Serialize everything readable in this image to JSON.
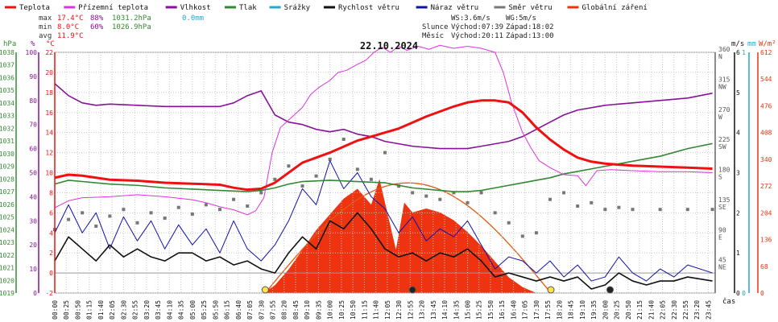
{
  "title": "22.10.2024",
  "legend": [
    {
      "label": "Teplota",
      "color": "#ee1111"
    },
    {
      "label": "Přízemní teplota",
      "color": "#dd33dd"
    },
    {
      "label": "Vlhkost",
      "color": "#881199"
    },
    {
      "label": "Tlak",
      "color": "#338833"
    },
    {
      "label": "Srážky",
      "color": "#22aacc"
    },
    {
      "label": "Rychlost větru",
      "color": "#111111"
    },
    {
      "label": "Náraz větru",
      "color": "#1111aa"
    },
    {
      "label": "Směr větru",
      "color": "#777777"
    },
    {
      "label": "Globální záření",
      "color": "#ee3311"
    }
  ],
  "stats": {
    "max_label": "max",
    "max_temp": "17.4°C",
    "max_hum": "88%",
    "max_press": "1031.2hPa",
    "max_rain": "0.0mm",
    "min_label": "min",
    "min_temp": "8.0°C",
    "min_hum": "60%",
    "min_press": "1026.9hPa",
    "avg_label": "avg",
    "avg_temp": "11.9°C"
  },
  "info": {
    "ws": "WS:3.6m/s",
    "wg": "WG:5m/s",
    "sun_label": "Slunce",
    "sun_rise": "Východ:07:39",
    "sun_set": "Západ:18:02",
    "moon_label": "Měsíc",
    "moon_rise": "Východ:20:11",
    "moon_set": "Západ:13:00"
  },
  "axes": {
    "hpa_unit": "hPa",
    "pct_unit": "%",
    "temp_unit": "°C",
    "ms_unit": "m/s",
    "mm_unit": "mm",
    "wm2_unit": "W/m²",
    "time_unit": "čas",
    "hpa_ticks": [
      1019,
      1020,
      1021,
      1022,
      1023,
      1024,
      1025,
      1026,
      1027,
      1028,
      1029,
      1030,
      1031,
      1032,
      1033,
      1034,
      1035,
      1036,
      1037,
      1038
    ],
    "pct_ticks": [
      0,
      10,
      20,
      30,
      40,
      50,
      60,
      70,
      80,
      90,
      100
    ],
    "temp_ticks": [
      -2,
      0,
      2,
      4,
      6,
      8,
      10,
      12,
      14,
      16,
      18,
      20,
      22
    ],
    "ms_ticks": [
      0,
      1,
      2,
      3,
      4,
      5,
      6
    ],
    "dir_ticks": [
      {
        "deg": "45",
        "name": "NE",
        "v": 45
      },
      {
        "deg": "90",
        "name": "E",
        "v": 90
      },
      {
        "deg": "135",
        "name": "SE",
        "v": 135
      },
      {
        "deg": "180",
        "name": "S",
        "v": 180
      },
      {
        "deg": "225",
        "name": "SW",
        "v": 225
      },
      {
        "deg": "270",
        "name": "W",
        "v": 270
      },
      {
        "deg": "315",
        "name": "NW",
        "v": 315
      },
      {
        "deg": "360",
        "name": "N",
        "v": 360
      }
    ],
    "mm_ticks": [
      0,
      1
    ],
    "wm2_ticks": [
      0,
      68,
      136,
      204,
      272,
      340,
      408,
      476,
      544,
      612
    ],
    "time_ticks": [
      "00:00",
      "00:25",
      "00:50",
      "01:15",
      "01:40",
      "02:05",
      "02:30",
      "02:55",
      "03:20",
      "03:45",
      "04:10",
      "04:35",
      "05:00",
      "05:25",
      "05:50",
      "06:15",
      "06:40",
      "07:05",
      "07:30",
      "07:55",
      "08:20",
      "08:45",
      "09:10",
      "09:35",
      "10:00",
      "10:25",
      "10:50",
      "11:15",
      "11:40",
      "12:05",
      "12:30",
      "12:55",
      "13:20",
      "13:45",
      "14:10",
      "14:35",
      "15:00",
      "15:25",
      "15:50",
      "16:15",
      "16:40",
      "17:05",
      "17:30",
      "17:55",
      "18:20",
      "18:45",
      "19:10",
      "19:35",
      "20:00",
      "20:25",
      "20:50",
      "21:15",
      "21:40",
      "22:05",
      "22:30",
      "22:55",
      "23:20",
      "23:45"
    ]
  },
  "colors": {
    "temp": "#ee1111",
    "ground": "#dd33dd",
    "hum": "#881199",
    "press": "#338833",
    "speed": "#111111",
    "gust": "#1111aa",
    "dir": "#777777",
    "solar": "#ee3311",
    "sunline": "#e05a10",
    "grid": "#c8c8c8"
  },
  "chart_data": {
    "type": "line",
    "title": "22.10.2024",
    "x_unit": "hours",
    "temperature": [
      [
        0,
        9.5
      ],
      [
        0.5,
        9.8
      ],
      [
        1,
        9.7
      ],
      [
        1.5,
        9.5
      ],
      [
        2,
        9.3
      ],
      [
        3,
        9.2
      ],
      [
        4,
        9.0
      ],
      [
        5,
        8.9
      ],
      [
        6,
        8.8
      ],
      [
        6.5,
        8.5
      ],
      [
        7,
        8.3
      ],
      [
        7.5,
        8.4
      ],
      [
        8,
        9.0
      ],
      [
        8.5,
        10.0
      ],
      [
        9,
        11.0
      ],
      [
        9.5,
        11.5
      ],
      [
        10,
        12.0
      ],
      [
        10.5,
        12.6
      ],
      [
        11,
        13.2
      ],
      [
        11.5,
        13.6
      ],
      [
        12,
        14.0
      ],
      [
        12.5,
        14.4
      ],
      [
        13,
        15.0
      ],
      [
        13.5,
        15.6
      ],
      [
        14,
        16.1
      ],
      [
        14.5,
        16.6
      ],
      [
        15,
        17.0
      ],
      [
        15.5,
        17.2
      ],
      [
        16,
        17.2
      ],
      [
        16.5,
        17.0
      ],
      [
        17,
        16.0
      ],
      [
        17.5,
        14.5
      ],
      [
        18,
        13.3
      ],
      [
        18.5,
        12.3
      ],
      [
        19,
        11.5
      ],
      [
        19.5,
        11.1
      ],
      [
        20,
        10.9
      ],
      [
        21,
        10.7
      ],
      [
        22,
        10.6
      ],
      [
        23,
        10.5
      ],
      [
        23.9,
        10.4
      ]
    ],
    "ground_temperature": [
      [
        0,
        6.5
      ],
      [
        0.5,
        7.2
      ],
      [
        1,
        7.5
      ],
      [
        2,
        7.6
      ],
      [
        3,
        7.8
      ],
      [
        4,
        7.6
      ],
      [
        5,
        7.3
      ],
      [
        5.5,
        7.0
      ],
      [
        6,
        6.6
      ],
      [
        6.5,
        6.3
      ],
      [
        7,
        5.8
      ],
      [
        7.3,
        6.2
      ],
      [
        7.6,
        7.5
      ],
      [
        7.9,
        12.0
      ],
      [
        8.2,
        14.5
      ],
      [
        8.6,
        15.5
      ],
      [
        9,
        16.5
      ],
      [
        9.3,
        17.8
      ],
      [
        9.6,
        18.5
      ],
      [
        10,
        19.2
      ],
      [
        10.3,
        20.0
      ],
      [
        10.6,
        20.2
      ],
      [
        11,
        20.8
      ],
      [
        11.3,
        21.2
      ],
      [
        11.6,
        22.0
      ],
      [
        11.9,
        22.5
      ],
      [
        12.2,
        22.0
      ],
      [
        12.5,
        22.6
      ],
      [
        12.8,
        22.2
      ],
      [
        13.2,
        22.6
      ],
      [
        13.6,
        22.3
      ],
      [
        14,
        22.7
      ],
      [
        14.5,
        22.4
      ],
      [
        15,
        22.6
      ],
      [
        15.5,
        22.4
      ],
      [
        16,
        22.0
      ],
      [
        16.3,
        20.0
      ],
      [
        16.6,
        17.0
      ],
      [
        17,
        14.0
      ],
      [
        17.3,
        12.5
      ],
      [
        17.6,
        11.2
      ],
      [
        18,
        10.5
      ],
      [
        18.5,
        9.8
      ],
      [
        19,
        9.7
      ],
      [
        19.3,
        8.7
      ],
      [
        19.7,
        10.2
      ],
      [
        20.2,
        10.3
      ],
      [
        21,
        10.2
      ],
      [
        22,
        10.1
      ],
      [
        23,
        10.1
      ],
      [
        23.9,
        10.0
      ]
    ],
    "humidity": [
      [
        0,
        87
      ],
      [
        0.5,
        82
      ],
      [
        1,
        79
      ],
      [
        1.5,
        78
      ],
      [
        2,
        78.5
      ],
      [
        3,
        78
      ],
      [
        4,
        77.5
      ],
      [
        5,
        77.5
      ],
      [
        6,
        77.5
      ],
      [
        6.5,
        79
      ],
      [
        7,
        82
      ],
      [
        7.5,
        84
      ],
      [
        8,
        74
      ],
      [
        8.5,
        71
      ],
      [
        9,
        70
      ],
      [
        9.5,
        68
      ],
      [
        10,
        67
      ],
      [
        10.5,
        68
      ],
      [
        11,
        66
      ],
      [
        11.5,
        65
      ],
      [
        12,
        63
      ],
      [
        12.5,
        62
      ],
      [
        13,
        61
      ],
      [
        14,
        60
      ],
      [
        15,
        60
      ],
      [
        15.5,
        61
      ],
      [
        16,
        62
      ],
      [
        16.5,
        63
      ],
      [
        17,
        65
      ],
      [
        17.5,
        68
      ],
      [
        18,
        71
      ],
      [
        18.5,
        74
      ],
      [
        19,
        76
      ],
      [
        20,
        78
      ],
      [
        21,
        79
      ],
      [
        22,
        80
      ],
      [
        23,
        81
      ],
      [
        23.9,
        83
      ]
    ],
    "pressure": [
      [
        0,
        1027.6
      ],
      [
        0.5,
        1027.9
      ],
      [
        1,
        1027.8
      ],
      [
        2,
        1027.6
      ],
      [
        3,
        1027.5
      ],
      [
        4,
        1027.3
      ],
      [
        5,
        1027.2
      ],
      [
        6,
        1027.1
      ],
      [
        7,
        1027.0
      ],
      [
        7.5,
        1027.1
      ],
      [
        8,
        1027.3
      ],
      [
        8.5,
        1027.6
      ],
      [
        9,
        1027.8
      ],
      [
        10,
        1027.9
      ],
      [
        11,
        1027.8
      ],
      [
        12,
        1027.7
      ],
      [
        12.5,
        1027.5
      ],
      [
        13,
        1027.3
      ],
      [
        14,
        1027.1
      ],
      [
        14.5,
        1027.0
      ],
      [
        15,
        1027.0
      ],
      [
        15.5,
        1027.1
      ],
      [
        16,
        1027.3
      ],
      [
        16.5,
        1027.5
      ],
      [
        17,
        1027.7
      ],
      [
        17.5,
        1027.9
      ],
      [
        18,
        1028.1
      ],
      [
        18.5,
        1028.4
      ],
      [
        19,
        1028.6
      ],
      [
        20,
        1029.0
      ],
      [
        21,
        1029.4
      ],
      [
        22,
        1029.8
      ],
      [
        23,
        1030.4
      ],
      [
        23.9,
        1030.8
      ]
    ],
    "wind_speed": [
      [
        0,
        0.8
      ],
      [
        0.5,
        1.4
      ],
      [
        1,
        1.1
      ],
      [
        1.5,
        0.8
      ],
      [
        2,
        1.2
      ],
      [
        2.5,
        0.9
      ],
      [
        3,
        1.1
      ],
      [
        3.5,
        0.9
      ],
      [
        4,
        0.8
      ],
      [
        4.5,
        1.0
      ],
      [
        5,
        1.0
      ],
      [
        5.5,
        0.8
      ],
      [
        6,
        0.9
      ],
      [
        6.5,
        0.7
      ],
      [
        7,
        0.8
      ],
      [
        7.5,
        0.6
      ],
      [
        8,
        0.5
      ],
      [
        8.5,
        1.0
      ],
      [
        9,
        1.4
      ],
      [
        9.5,
        1.1
      ],
      [
        10,
        1.8
      ],
      [
        10.5,
        1.6
      ],
      [
        11,
        2.0
      ],
      [
        11.5,
        1.6
      ],
      [
        12,
        1.1
      ],
      [
        12.5,
        0.9
      ],
      [
        13,
        1.0
      ],
      [
        13.5,
        0.8
      ],
      [
        14,
        1.0
      ],
      [
        14.5,
        0.9
      ],
      [
        15,
        1.1
      ],
      [
        15.5,
        0.8
      ],
      [
        16,
        0.4
      ],
      [
        16.5,
        0.5
      ],
      [
        17,
        0.4
      ],
      [
        17.5,
        0.3
      ],
      [
        18,
        0.4
      ],
      [
        18.5,
        0.3
      ],
      [
        19,
        0.4
      ],
      [
        19.5,
        0.1
      ],
      [
        20,
        0.2
      ],
      [
        20.5,
        0.5
      ],
      [
        21,
        0.3
      ],
      [
        21.5,
        0.2
      ],
      [
        22,
        0.3
      ],
      [
        22.5,
        0.3
      ],
      [
        23,
        0.4
      ],
      [
        23.9,
        0.3
      ]
    ],
    "wind_gust": [
      [
        0,
        1.5
      ],
      [
        0.5,
        2.2
      ],
      [
        1,
        1.5
      ],
      [
        1.5,
        2.0
      ],
      [
        2,
        1.1
      ],
      [
        2.5,
        1.9
      ],
      [
        3,
        1.3
      ],
      [
        3.5,
        1.8
      ],
      [
        4,
        1.1
      ],
      [
        4.5,
        1.7
      ],
      [
        5,
        1.2
      ],
      [
        5.5,
        1.6
      ],
      [
        6,
        1.0
      ],
      [
        6.5,
        1.8
      ],
      [
        7,
        1.1
      ],
      [
        7.5,
        0.8
      ],
      [
        8,
        1.2
      ],
      [
        8.5,
        1.8
      ],
      [
        9,
        2.6
      ],
      [
        9.5,
        2.2
      ],
      [
        10,
        3.3
      ],
      [
        10.5,
        2.6
      ],
      [
        11,
        3.0
      ],
      [
        11.5,
        2.4
      ],
      [
        12,
        2.1
      ],
      [
        12.5,
        1.5
      ],
      [
        13,
        1.9
      ],
      [
        13.5,
        1.3
      ],
      [
        14,
        1.6
      ],
      [
        14.5,
        1.4
      ],
      [
        15,
        1.8
      ],
      [
        15.5,
        1.2
      ],
      [
        16,
        0.6
      ],
      [
        16.5,
        0.9
      ],
      [
        17,
        0.8
      ],
      [
        17.5,
        0.5
      ],
      [
        18,
        0.8
      ],
      [
        18.5,
        0.4
      ],
      [
        19,
        0.7
      ],
      [
        19.5,
        0.3
      ],
      [
        20,
        0.4
      ],
      [
        20.5,
        0.9
      ],
      [
        21,
        0.5
      ],
      [
        21.5,
        0.3
      ],
      [
        22,
        0.6
      ],
      [
        22.5,
        0.4
      ],
      [
        23,
        0.7
      ],
      [
        23.9,
        0.5
      ]
    ],
    "wind_direction": [
      [
        0,
        95
      ],
      [
        0.5,
        110
      ],
      [
        1,
        120
      ],
      [
        1.5,
        100
      ],
      [
        2,
        115
      ],
      [
        2.5,
        125
      ],
      [
        3,
        105
      ],
      [
        3.5,
        120
      ],
      [
        4,
        112
      ],
      [
        4.5,
        128
      ],
      [
        5,
        118
      ],
      [
        5.5,
        132
      ],
      [
        6,
        125
      ],
      [
        6.5,
        140
      ],
      [
        7,
        130
      ],
      [
        7.5,
        150
      ],
      [
        8,
        170
      ],
      [
        8.5,
        190
      ],
      [
        9,
        160
      ],
      [
        9.5,
        175
      ],
      [
        10,
        200
      ],
      [
        10.5,
        230
      ],
      [
        11,
        185
      ],
      [
        11.5,
        170
      ],
      [
        12,
        210
      ],
      [
        12.5,
        160
      ],
      [
        13,
        150
      ],
      [
        13.5,
        145
      ],
      [
        14,
        140
      ],
      [
        14.5,
        150
      ],
      [
        15,
        135
      ],
      [
        15.5,
        150
      ],
      [
        16,
        120
      ],
      [
        16.5,
        105
      ],
      [
        17,
        85
      ],
      [
        17.5,
        90
      ],
      [
        18,
        140
      ],
      [
        18.5,
        150
      ],
      [
        19,
        130
      ],
      [
        19.5,
        135
      ],
      [
        20,
        125
      ],
      [
        20.5,
        128
      ],
      [
        21,
        125
      ],
      [
        22,
        125
      ],
      [
        23,
        125
      ],
      [
        23.9,
        125
      ]
    ],
    "solar_radiation": [
      [
        7.6,
        0
      ],
      [
        8,
        20
      ],
      [
        8.5,
        60
      ],
      [
        9,
        110
      ],
      [
        9.5,
        160
      ],
      [
        10,
        200
      ],
      [
        10.5,
        240
      ],
      [
        11,
        265
      ],
      [
        11.5,
        225
      ],
      [
        11.8,
        290
      ],
      [
        12.1,
        200
      ],
      [
        12.4,
        110
      ],
      [
        12.7,
        230
      ],
      [
        13,
        205
      ],
      [
        13.5,
        215
      ],
      [
        14,
        205
      ],
      [
        14.5,
        185
      ],
      [
        15,
        155
      ],
      [
        15.5,
        120
      ],
      [
        16,
        80
      ],
      [
        16.5,
        40
      ],
      [
        17,
        15
      ],
      [
        17.5,
        0
      ]
    ],
    "clear_sky_radiation_max": 280,
    "sunrise_hour": 7.65,
    "sunset_hour": 18.03,
    "moonrise_hour": 20.18,
    "moonset_hour": 13.0,
    "ranges": {
      "temp": [
        -2,
        22
      ],
      "humidity": [
        0,
        100
      ],
      "pressure": [
        1019,
        1038
      ],
      "wind": [
        0,
        6
      ],
      "direction": [
        0,
        360
      ],
      "solar": [
        0,
        612
      ]
    }
  }
}
